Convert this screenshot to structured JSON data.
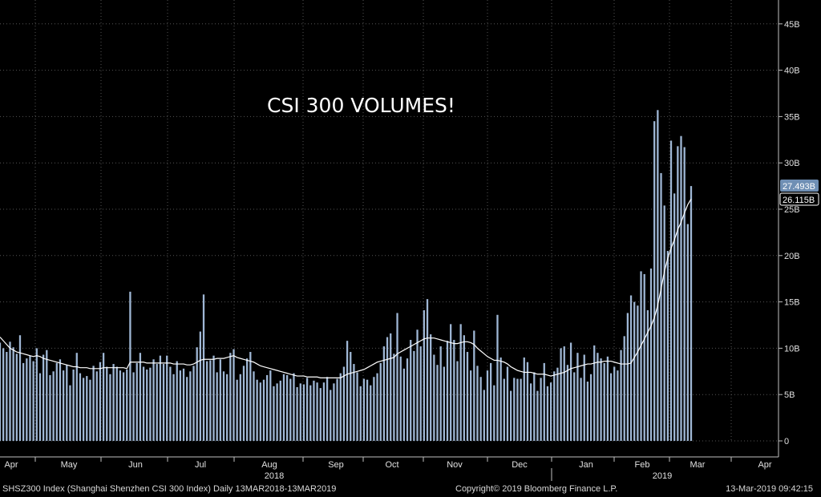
{
  "chart_data": {
    "type": "bar",
    "title": "CSI 300 VOLUMES!",
    "y_ticks": [
      "0",
      "5B",
      "10B",
      "15B",
      "20B",
      "25B",
      "30B",
      "35B",
      "40B",
      "45B"
    ],
    "ylim": [
      0,
      47.5
    ],
    "y_unit": "B",
    "x_month_labels": [
      "Apr",
      "May",
      "Jun",
      "Jul",
      "Aug",
      "Sep",
      "Oct",
      "Nov",
      "Dec",
      "Jan",
      "Feb",
      "Mar",
      "Apr"
    ],
    "year_labels": [
      "2018",
      "2019"
    ],
    "value_labels": [
      "27.493B",
      "26.115B"
    ],
    "series": [
      {
        "name": "Volume",
        "color": "#9fb7d5",
        "values": [
          10.6,
          10.0,
          9.6,
          10.7,
          10.1,
          9.4,
          11.4,
          8.4,
          8.9,
          9.2,
          8.6,
          10.0,
          7.3,
          9.3,
          9.8,
          7.1,
          7.5,
          8.4,
          8.8,
          7.6,
          8.2,
          6.0,
          7.7,
          9.5,
          7.3,
          6.8,
          7.0,
          6.6,
          8.1,
          7.5,
          8.5,
          9.5,
          8.0,
          7.2,
          8.3,
          8.0,
          7.6,
          7.4,
          7.7,
          16.1,
          7.4,
          8.4,
          9.5,
          8.0,
          7.7,
          7.9,
          8.8,
          8.3,
          9.2,
          8.3,
          9.2,
          8.0,
          7.2,
          8.6,
          7.6,
          7.8,
          6.9,
          7.5,
          8.1,
          10.1,
          11.8,
          15.8,
          8.6,
          8.7,
          9.2,
          7.4,
          8.8,
          7.5,
          7.2,
          9.5,
          9.9,
          6.6,
          7.2,
          8.1,
          8.9,
          9.6,
          7.5,
          6.6,
          6.3,
          6.6,
          7.1,
          7.6,
          5.9,
          6.2,
          6.5,
          7.2,
          7.1,
          6.7,
          7.3,
          5.8,
          6.2,
          6.1,
          6.8,
          6.0,
          6.5,
          6.3,
          5.7,
          6.3,
          6.9,
          5.5,
          6.2,
          6.7,
          7.3,
          8.0,
          10.8,
          9.6,
          8.3,
          7.4,
          5.9,
          6.7,
          6.6,
          6.0,
          6.9,
          7.3,
          8.4,
          10.2,
          11.2,
          11.6,
          9.4,
          13.8,
          9.1,
          7.8,
          8.9,
          10.9,
          9.7,
          12.0,
          10.2,
          14.1,
          15.3,
          11.5,
          9.3,
          8.2,
          10.2,
          8.0,
          10.8,
          12.6,
          10.9,
          8.6,
          12.6,
          11.4,
          9.6,
          7.6,
          11.9,
          8.1,
          6.9,
          5.5,
          7.6,
          8.4,
          6.0,
          13.6,
          9.0,
          6.7,
          8.0,
          5.4,
          6.8,
          6.7,
          6.7,
          9.0,
          8.5,
          6.2,
          7.4,
          5.4,
          6.8,
          8.4,
          5.9,
          6.3,
          7.5,
          7.9,
          10.0,
          10.2,
          8.2,
          10.6,
          7.4,
          9.5,
          6.8,
          9.3,
          6.4,
          7.2,
          10.3,
          9.5,
          8.9,
          8.4,
          9.1,
          7.3,
          8.0,
          7.6,
          9.8,
          11.3,
          13.8,
          15.7,
          15.0,
          14.6,
          18.3,
          18.0,
          14.1,
          18.6,
          34.5,
          35.7,
          28.9,
          25.4,
          20.5,
          32.4,
          26.7,
          31.8,
          32.9,
          31.7,
          23.4,
          27.5
        ]
      },
      {
        "name": "Moving average",
        "color": "#ffffff",
        "values": [
          11.2,
          10.8,
          10.4,
          10.0,
          9.8,
          9.6,
          9.5,
          9.4,
          9.3,
          9.2,
          9.1,
          9.2,
          9.1,
          8.9,
          8.8,
          8.7,
          8.6,
          8.5,
          8.4,
          8.3,
          8.2,
          8.1,
          8.0,
          8.0,
          7.9,
          7.9,
          7.9,
          7.8,
          7.8,
          7.8,
          7.8,
          7.9,
          7.9,
          7.9,
          7.9,
          7.9,
          7.9,
          7.9,
          7.8,
          8.5,
          8.5,
          8.5,
          8.5,
          8.5,
          8.4,
          8.4,
          8.4,
          8.4,
          8.4,
          8.4,
          8.4,
          8.4,
          8.3,
          8.3,
          8.3,
          8.3,
          8.2,
          8.2,
          8.3,
          8.5,
          8.7,
          8.8,
          8.8,
          8.8,
          8.8,
          8.9,
          8.9,
          8.9,
          9.0,
          9.1,
          9.2,
          9.0,
          8.9,
          8.8,
          8.7,
          8.6,
          8.5,
          8.3,
          8.1,
          8.0,
          7.9,
          7.8,
          7.7,
          7.6,
          7.5,
          7.4,
          7.3,
          7.2,
          7.1,
          7.0,
          7.0,
          7.0,
          6.9,
          6.9,
          6.9,
          6.9,
          6.8,
          6.8,
          6.8,
          6.8,
          6.8,
          6.8,
          6.8,
          7.0,
          7.2,
          7.3,
          7.4,
          7.5,
          7.6,
          7.7,
          7.9,
          8.1,
          8.3,
          8.5,
          8.6,
          8.7,
          8.8,
          8.9,
          9.0,
          9.4,
          9.6,
          9.8,
          10.0,
          10.2,
          10.4,
          10.6,
          10.8,
          11.0,
          11.1,
          11.1,
          11.1,
          11.0,
          10.9,
          10.8,
          10.7,
          10.6,
          10.5,
          10.5,
          10.6,
          10.7,
          10.7,
          10.6,
          10.4,
          10.0,
          9.7,
          9.4,
          9.1,
          8.9,
          8.7,
          8.7,
          8.6,
          8.5,
          8.3,
          8.0,
          7.8,
          7.6,
          7.5,
          7.4,
          7.4,
          7.4,
          7.3,
          7.2,
          7.2,
          7.2,
          7.1,
          7.0,
          7.1,
          7.2,
          7.3,
          7.4,
          7.6,
          7.8,
          7.9,
          8.0,
          8.1,
          8.2,
          8.3,
          8.3,
          8.4,
          8.5,
          8.5,
          8.6,
          8.6,
          8.6,
          8.5,
          8.4,
          8.3,
          8.3,
          8.3,
          8.4,
          9.0,
          9.6,
          10.3,
          11.0,
          11.7,
          12.4,
          13.3,
          14.6,
          16.4,
          18.3,
          19.7,
          20.8,
          21.7,
          22.8,
          23.6,
          24.6,
          25.5,
          26.1
        ]
      }
    ],
    "grid": true
  },
  "footer": {
    "left": "SHSZ300 Index (Shanghai Shenzhen CSI 300 Index)  Daily 13MAR2018-13MAR2019",
    "center": "Copyright© 2019 Bloomberg Finance L.P.",
    "right": "13-Mar-2019 09:42:15"
  },
  "colors": {
    "background": "#000000",
    "bars": "#9fb7d5",
    "line": "#ffffff",
    "grid": "#5a5a5a",
    "badge_fill": "#6f8fb4"
  }
}
